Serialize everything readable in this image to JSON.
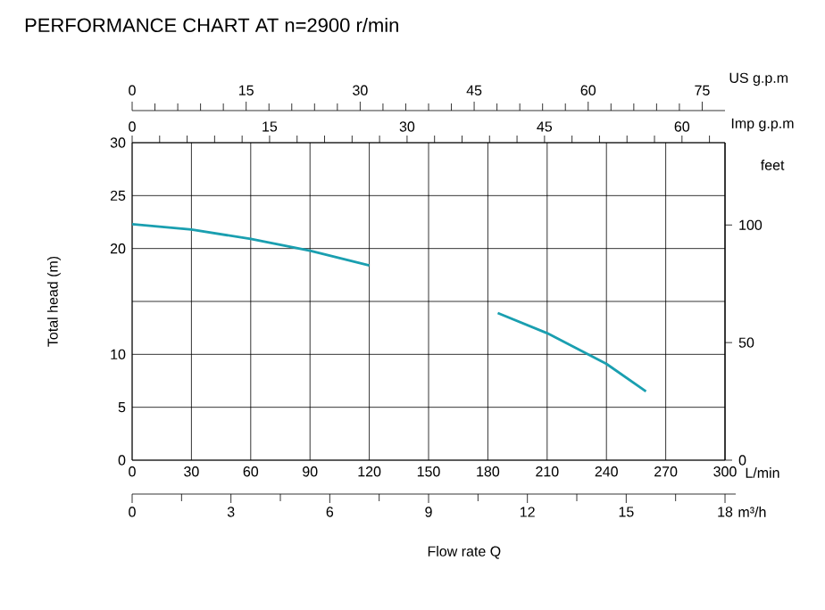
{
  "chart_data": {
    "type": "line",
    "title": "PERFORMANCE CHART AT n=2900 r/min",
    "xlabel": "Flow rate Q",
    "ylabel": "Total head (m)",
    "y2label": "feet",
    "x2label": "US g.p.m",
    "annotations": [
      "L/min",
      "Imp g.p.m",
      "0",
      "15",
      "30",
      "45",
      "60",
      "m³/h",
      "0",
      "3",
      "6",
      "9",
      "12",
      "15",
      "18"
    ],
    "x": [
      0,
      30,
      60,
      90,
      120,
      null,
      185,
      210,
      240,
      260
    ],
    "series": [
      {
        "color": "#1a9fb0",
        "values": [
          22.3,
          21.8,
          20.9,
          19.8,
          18.4,
          null,
          13.9,
          12.0,
          9.1,
          6.5
        ]
      }
    ],
    "xlim": [
      0,
      300
    ],
    "xticks": [
      0,
      30,
      60,
      90,
      120,
      150,
      180,
      210,
      240,
      270,
      300
    ],
    "ylim": [
      0,
      30
    ],
    "yticks": [
      0,
      5,
      10,
      {
        "value": 15,
        "label": null
      },
      20,
      25,
      30
    ],
    "y2lim": [
      0,
      135
    ],
    "y2ticks": [
      0,
      50,
      100
    ],
    "x2lim": [
      0,
      78
    ],
    "x2ticks": [
      0,
      15,
      30,
      45,
      60,
      75
    ],
    "grid": true,
    "marker": "none",
    "line_style": "solid"
  }
}
